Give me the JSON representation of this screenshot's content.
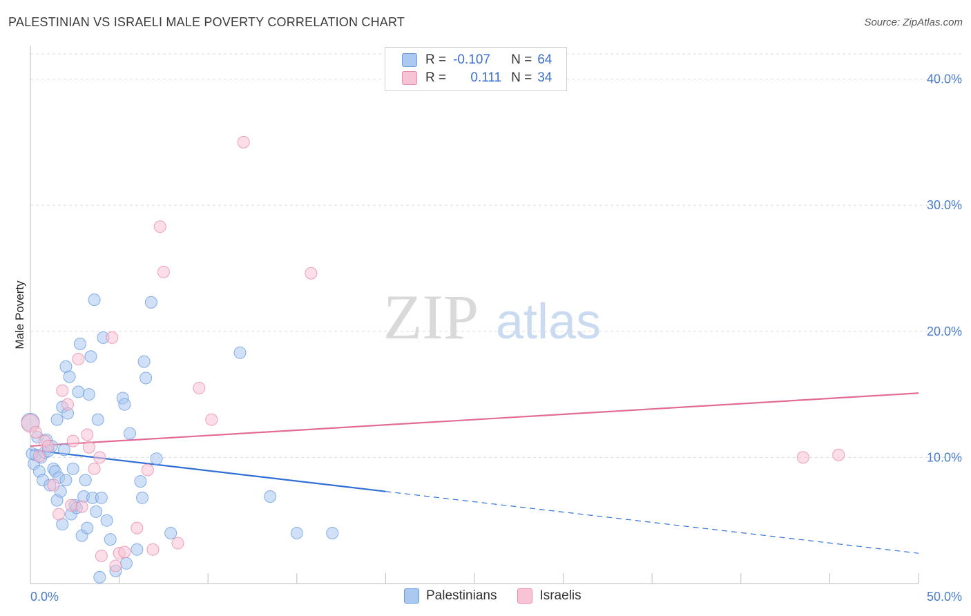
{
  "title": "PALESTINIAN VS ISRAELI MALE POVERTY CORRELATION CHART",
  "source": "Source: ZipAtlas.com",
  "watermark": {
    "zip": "ZIP",
    "atlas": "atlas"
  },
  "legend": {
    "rows": [
      {
        "r_label": "R =",
        "r_value": "-0.107",
        "n_label": "N =",
        "n_value": "64",
        "color": "#aac8f0",
        "border": "#6a9be0"
      },
      {
        "r_label": "R =",
        "r_value": "0.111",
        "n_label": "N =",
        "n_value": "34",
        "color": "#f8c3d4",
        "border": "#e88aab"
      }
    ]
  },
  "bottom_legend": [
    {
      "label": "Palestinians",
      "color": "#aac8f0",
      "border": "#6a9be0"
    },
    {
      "label": "Israelis",
      "color": "#f8c3d4",
      "border": "#e88aab"
    }
  ],
  "chart_data": {
    "type": "scatter",
    "title": "PALESTINIAN VS ISRAELI MALE POVERTY CORRELATION CHART",
    "xlabel": "",
    "ylabel": "Male Poverty",
    "xlim": [
      0,
      50
    ],
    "ylim": [
      0,
      42
    ],
    "x_tick_labels": [
      "0.0%",
      "50.0%"
    ],
    "y_ticks": [
      10,
      20,
      30,
      40
    ],
    "y_tick_labels": [
      "10.0%",
      "20.0%",
      "30.0%",
      "40.0%"
    ],
    "grid": true,
    "series": [
      {
        "name": "Palestinians",
        "color": "#6a9be0",
        "fill": "#aac8f0",
        "trend": {
          "x0": 0,
          "y0": 10.6,
          "x1": 20,
          "y1": 7.3,
          "dash_to_x": 50,
          "dash_to_y": 2.4,
          "color": "#2f6fd6"
        },
        "points": [
          [
            0.0,
            12.8
          ],
          [
            0.2,
            9.5
          ],
          [
            0.3,
            10.2
          ],
          [
            0.4,
            11.6
          ],
          [
            0.5,
            8.9
          ],
          [
            0.6,
            10.0
          ],
          [
            0.7,
            8.2
          ],
          [
            0.8,
            10.4
          ],
          [
            0.9,
            11.4
          ],
          [
            1.0,
            10.5
          ],
          [
            1.1,
            7.8
          ],
          [
            1.2,
            10.9
          ],
          [
            1.3,
            9.1
          ],
          [
            1.4,
            8.9
          ],
          [
            1.5,
            6.6
          ],
          [
            1.5,
            13.0
          ],
          [
            1.6,
            8.4
          ],
          [
            1.7,
            7.3
          ],
          [
            1.8,
            14.0
          ],
          [
            1.8,
            4.7
          ],
          [
            1.9,
            10.6
          ],
          [
            2.0,
            17.2
          ],
          [
            2.0,
            8.2
          ],
          [
            2.1,
            13.5
          ],
          [
            2.2,
            16.4
          ],
          [
            2.3,
            5.5
          ],
          [
            2.4,
            9.1
          ],
          [
            2.5,
            6.2
          ],
          [
            2.6,
            6.0
          ],
          [
            2.7,
            15.2
          ],
          [
            2.8,
            19.0
          ],
          [
            2.9,
            3.8
          ],
          [
            3.0,
            6.9
          ],
          [
            3.1,
            8.2
          ],
          [
            3.2,
            4.4
          ],
          [
            3.3,
            15.0
          ],
          [
            3.4,
            18.0
          ],
          [
            3.5,
            6.8
          ],
          [
            3.6,
            22.5
          ],
          [
            3.7,
            5.7
          ],
          [
            3.8,
            13.0
          ],
          [
            3.9,
            0.5
          ],
          [
            4.0,
            6.8
          ],
          [
            4.1,
            19.5
          ],
          [
            4.3,
            5.0
          ],
          [
            4.5,
            3.5
          ],
          [
            4.8,
            1.0
          ],
          [
            5.2,
            14.7
          ],
          [
            5.3,
            14.2
          ],
          [
            5.4,
            1.6
          ],
          [
            5.6,
            11.9
          ],
          [
            6.0,
            2.7
          ],
          [
            6.2,
            8.1
          ],
          [
            6.3,
            6.8
          ],
          [
            6.4,
            17.6
          ],
          [
            6.5,
            16.3
          ],
          [
            6.8,
            22.3
          ],
          [
            7.1,
            9.9
          ],
          [
            7.9,
            4.0
          ],
          [
            11.8,
            18.3
          ],
          [
            13.5,
            6.9
          ],
          [
            15.0,
            4.0
          ],
          [
            17.0,
            4.0
          ],
          [
            0.1,
            10.3
          ]
        ]
      },
      {
        "name": "Israelis",
        "color": "#e88aab",
        "fill": "#f8c3d4",
        "trend": {
          "x0": 0,
          "y0": 10.9,
          "x1": 50,
          "y1": 15.1,
          "color": "#e26b93"
        },
        "points": [
          [
            0.0,
            12.7
          ],
          [
            0.3,
            12.0
          ],
          [
            0.5,
            10.1
          ],
          [
            0.8,
            11.3
          ],
          [
            1.0,
            10.9
          ],
          [
            1.3,
            7.8
          ],
          [
            1.6,
            5.5
          ],
          [
            1.8,
            15.3
          ],
          [
            2.1,
            14.2
          ],
          [
            2.3,
            6.2
          ],
          [
            2.4,
            11.3
          ],
          [
            2.7,
            17.8
          ],
          [
            2.9,
            6.1
          ],
          [
            3.2,
            11.8
          ],
          [
            3.3,
            10.8
          ],
          [
            3.6,
            9.1
          ],
          [
            3.9,
            10.0
          ],
          [
            4.0,
            2.2
          ],
          [
            4.6,
            19.5
          ],
          [
            4.8,
            1.4
          ],
          [
            5.0,
            2.4
          ],
          [
            5.3,
            2.5
          ],
          [
            6.0,
            4.4
          ],
          [
            6.6,
            9.0
          ],
          [
            6.9,
            2.7
          ],
          [
            7.3,
            28.3
          ],
          [
            7.5,
            24.7
          ],
          [
            8.3,
            3.2
          ],
          [
            9.5,
            15.5
          ],
          [
            10.2,
            13.0
          ],
          [
            12.0,
            35.0
          ],
          [
            15.8,
            24.6
          ],
          [
            43.5,
            10.0
          ],
          [
            45.5,
            10.2
          ]
        ]
      }
    ]
  }
}
